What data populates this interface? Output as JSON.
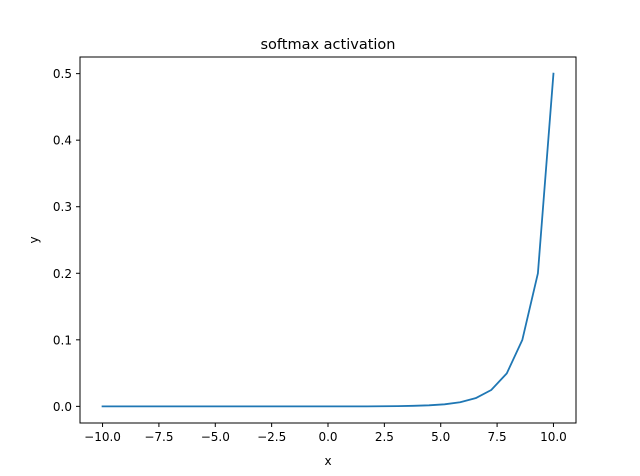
{
  "chart_data": {
    "type": "line",
    "title": "softmax activation",
    "xlabel": "x",
    "ylabel": "y",
    "xlim": [
      -11.0,
      11.0
    ],
    "ylim": [
      -0.025,
      0.525
    ],
    "xticks": [
      -10.0,
      -7.5,
      -5.0,
      -2.5,
      0.0,
      2.5,
      5.0,
      7.5,
      10.0
    ],
    "xtick_labels": [
      "−10.0",
      "−7.5",
      "−5.0",
      "−2.5",
      "0.0",
      "2.5",
      "5.0",
      "7.5",
      "10.0"
    ],
    "yticks": [
      0.0,
      0.1,
      0.2,
      0.3,
      0.4,
      0.5
    ],
    "ytick_labels": [
      "0.0",
      "0.1",
      "0.2",
      "0.3",
      "0.4",
      "0.5"
    ],
    "grid": false,
    "series": [
      {
        "color": "#1f77b4",
        "x": [
          -10.0,
          -9.31,
          -8.62,
          -7.93,
          -7.24,
          -6.55,
          -5.86,
          -5.17,
          -4.48,
          -3.79,
          -3.1,
          -2.41,
          -1.72,
          -1.03,
          -0.34,
          0.34,
          1.03,
          1.72,
          2.41,
          3.1,
          3.79,
          4.48,
          5.17,
          5.86,
          6.55,
          7.24,
          7.93,
          8.62,
          9.31,
          10.0
        ],
        "y": [
          0.0,
          0.0,
          0.0,
          0.0,
          0.0,
          0.0,
          0.0,
          0.0,
          0.0,
          0.0,
          0.0,
          0.0,
          0.0,
          0.0,
          0.0,
          0.0,
          0.0,
          0.0,
          0.0002,
          0.0004,
          0.0008,
          0.0016,
          0.0031,
          0.0062,
          0.0123,
          0.0246,
          0.0496,
          0.1,
          0.2,
          0.5
        ]
      }
    ]
  }
}
